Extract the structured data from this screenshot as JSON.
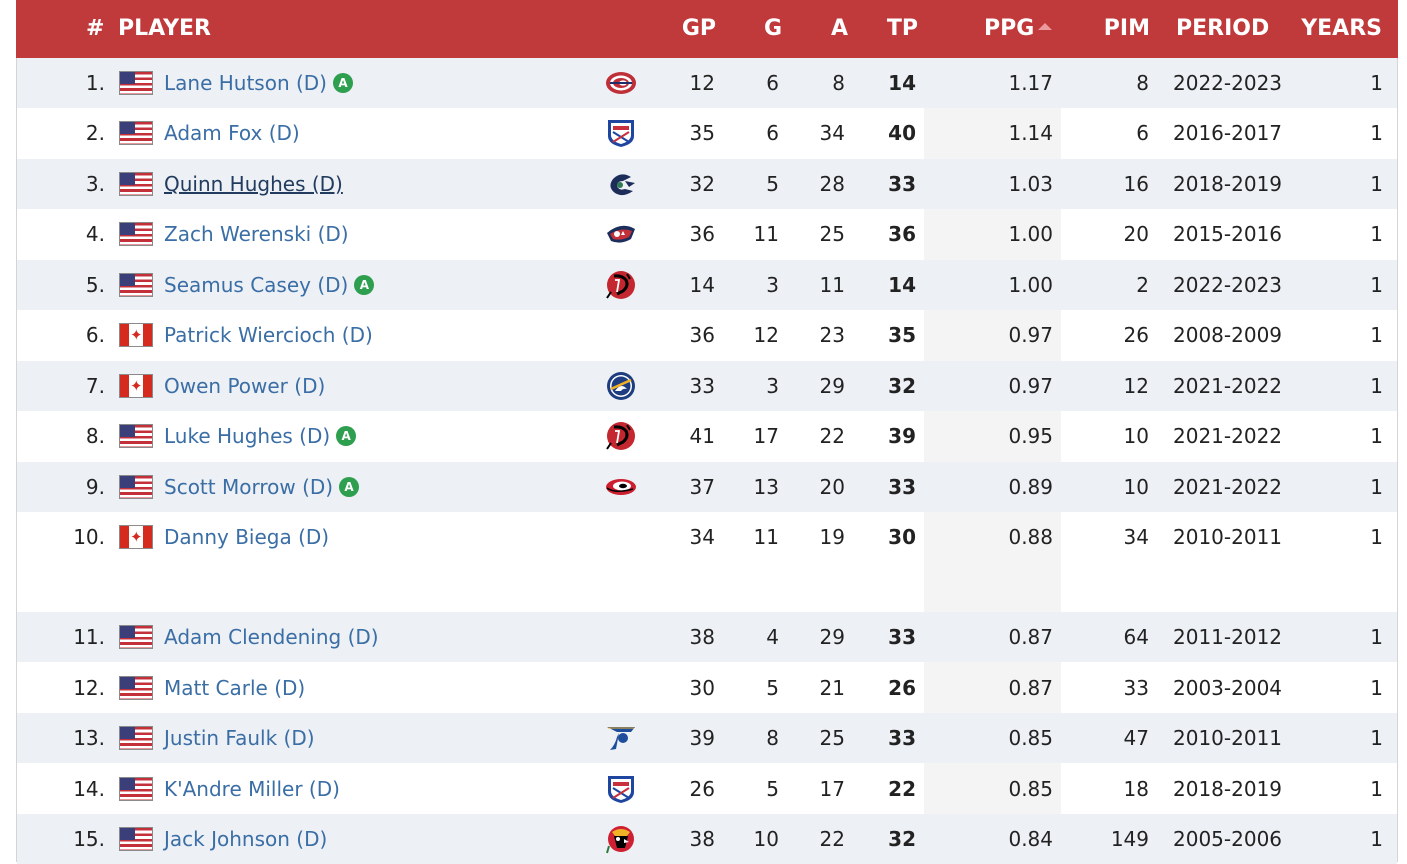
{
  "table": {
    "columns": {
      "rank": "#",
      "player": "PLAYER",
      "gp": "GP",
      "g": "G",
      "a": "A",
      "tp": "TP",
      "ppg": "PPG",
      "pim": "PIM",
      "period": "PERIOD",
      "years": "YEARS"
    },
    "sorted_column": "PPG",
    "rows": [
      {
        "rank": "1.",
        "flag": "us",
        "player": "Lane Hutson (D)",
        "badge": "A",
        "team_logo": "montreal-canadiens-logo-icon",
        "gp": "12",
        "g": "6",
        "a": "8",
        "tp": "14",
        "ppg": "1.17",
        "pim": "8",
        "period": "2022-2023",
        "years": "1"
      },
      {
        "rank": "2.",
        "flag": "us",
        "player": "Adam Fox (D)",
        "badge": "",
        "team_logo": "new-york-rangers-logo-icon",
        "gp": "35",
        "g": "6",
        "a": "34",
        "tp": "40",
        "ppg": "1.14",
        "pim": "6",
        "period": "2016-2017",
        "years": "1"
      },
      {
        "rank": "3.",
        "flag": "us",
        "player": "Quinn Hughes (D)",
        "badge": "",
        "team_logo": "vancouver-canucks-logo-icon",
        "gp": "32",
        "g": "5",
        "a": "28",
        "tp": "33",
        "ppg": "1.03",
        "pim": "16",
        "period": "2018-2019",
        "years": "1"
      },
      {
        "rank": "4.",
        "flag": "us",
        "player": "Zach Werenski (D)",
        "badge": "",
        "team_logo": "columbus-blue-jackets-logo-icon",
        "gp": "36",
        "g": "11",
        "a": "25",
        "tp": "36",
        "ppg": "1.00",
        "pim": "20",
        "period": "2015-2016",
        "years": "1"
      },
      {
        "rank": "5.",
        "flag": "us",
        "player": "Seamus Casey (D)",
        "badge": "A",
        "team_logo": "new-jersey-devils-logo-icon",
        "gp": "14",
        "g": "3",
        "a": "11",
        "tp": "14",
        "ppg": "1.00",
        "pim": "2",
        "period": "2022-2023",
        "years": "1"
      },
      {
        "rank": "6.",
        "flag": "ca",
        "player": "Patrick Wiercioch (D)",
        "badge": "",
        "team_logo": "",
        "gp": "36",
        "g": "12",
        "a": "23",
        "tp": "35",
        "ppg": "0.97",
        "pim": "26",
        "period": "2008-2009",
        "years": "1"
      },
      {
        "rank": "7.",
        "flag": "ca",
        "player": "Owen Power (D)",
        "badge": "",
        "team_logo": "buffalo-sabres-logo-icon",
        "gp": "33",
        "g": "3",
        "a": "29",
        "tp": "32",
        "ppg": "0.97",
        "pim": "12",
        "period": "2021-2022",
        "years": "1"
      },
      {
        "rank": "8.",
        "flag": "us",
        "player": "Luke Hughes (D)",
        "badge": "A",
        "team_logo": "new-jersey-devils-logo-icon",
        "gp": "41",
        "g": "17",
        "a": "22",
        "tp": "39",
        "ppg": "0.95",
        "pim": "10",
        "period": "2021-2022",
        "years": "1"
      },
      {
        "rank": "9.",
        "flag": "us",
        "player": "Scott Morrow (D)",
        "badge": "A",
        "team_logo": "carolina-hurricanes-logo-icon",
        "gp": "37",
        "g": "13",
        "a": "20",
        "tp": "33",
        "ppg": "0.89",
        "pim": "10",
        "period": "2021-2022",
        "years": "1"
      },
      {
        "rank": "10.",
        "flag": "ca",
        "player": "Danny Biega (D)",
        "badge": "",
        "team_logo": "",
        "gp": "34",
        "g": "11",
        "a": "19",
        "tp": "30",
        "ppg": "0.88",
        "pim": "34",
        "period": "2010-2011",
        "years": "1"
      },
      {
        "rank": "11.",
        "flag": "us",
        "player": "Adam Clendening (D)",
        "badge": "",
        "team_logo": "",
        "gp": "38",
        "g": "4",
        "a": "29",
        "tp": "33",
        "ppg": "0.87",
        "pim": "64",
        "period": "2011-2012",
        "years": "1"
      },
      {
        "rank": "12.",
        "flag": "us",
        "player": "Matt Carle (D)",
        "badge": "",
        "team_logo": "",
        "gp": "30",
        "g": "5",
        "a": "21",
        "tp": "26",
        "ppg": "0.87",
        "pim": "33",
        "period": "2003-2004",
        "years": "1"
      },
      {
        "rank": "13.",
        "flag": "us",
        "player": "Justin Faulk (D)",
        "badge": "",
        "team_logo": "st-louis-blues-logo-icon",
        "gp": "39",
        "g": "8",
        "a": "25",
        "tp": "33",
        "ppg": "0.85",
        "pim": "47",
        "period": "2010-2011",
        "years": "1"
      },
      {
        "rank": "14.",
        "flag": "us",
        "player": "K'Andre Miller (D)",
        "badge": "",
        "team_logo": "new-york-rangers-logo-icon",
        "gp": "26",
        "g": "5",
        "a": "17",
        "tp": "22",
        "ppg": "0.85",
        "pim": "18",
        "period": "2018-2019",
        "years": "1"
      },
      {
        "rank": "15.",
        "flag": "us",
        "player": "Jack Johnson (D)",
        "badge": "",
        "team_logo": "chicago-blackhawks-logo-icon",
        "gp": "38",
        "g": "10",
        "a": "22",
        "tp": "32",
        "ppg": "0.84",
        "pim": "149",
        "period": "2005-2006",
        "years": "1"
      }
    ]
  },
  "colors": {
    "header_bg": "#c0393b",
    "link": "#3a6ea5",
    "badge": "#2e9e4f",
    "alt_row": "#edf0f5"
  }
}
